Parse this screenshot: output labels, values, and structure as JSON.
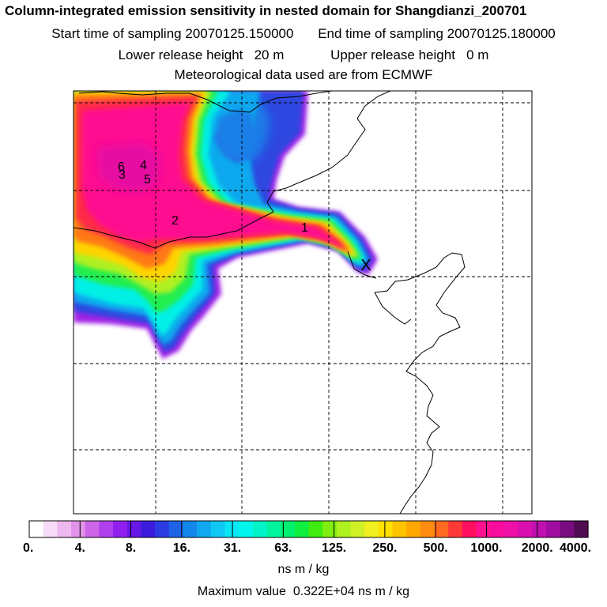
{
  "header": {
    "title": "Column-integrated emission sensitivity in nested domain for Shangdianzi_200701",
    "start_label": "Start time of sampling",
    "start_value": "20070125.150000",
    "end_label": "End time of sampling",
    "end_value": "20070125.180000",
    "lower_label": "Lower release height",
    "lower_value": "20 m",
    "upper_label": "Upper release height",
    "upper_value": "0 m",
    "met_line": "Meteorological data used are from ECMWF"
  },
  "chart_data": {
    "type": "heatmap",
    "title": "Column-integrated emission sensitivity in nested domain for Shangdianzi_200701",
    "colorbar": {
      "tick_labels": [
        "0.",
        "4.",
        "8.",
        "16.",
        "31.",
        "63.",
        "125.",
        "250.",
        "500.",
        "1000.",
        "2000.",
        "4000."
      ],
      "units": "ns m / kg",
      "colors": [
        "#ffffff",
        "#f7dcf7",
        "#eeb8f0",
        "#e292ea",
        "#cc66e6",
        "#b040ee",
        "#9020f0",
        "#6818e6",
        "#3c1cdc",
        "#2c3ce0",
        "#1e62e6",
        "#1488ea",
        "#10a8ee",
        "#10c8f4",
        "#0ae6f4",
        "#00f6ec",
        "#00f4c8",
        "#00f4a0",
        "#00f070",
        "#10ee40",
        "#40ec10",
        "#80ee10",
        "#aef020",
        "#d0f028",
        "#f0f020",
        "#ffe000",
        "#ffc400",
        "#ffa800",
        "#ff8c10",
        "#ff6a20",
        "#ff3838",
        "#ff1060",
        "#ff1090",
        "#f80c9e",
        "#ee10a8",
        "#d810b0",
        "#c010b0",
        "#a00ca0",
        "#780c80",
        "#500c50"
      ]
    },
    "max_label": "Maximum value",
    "max_value": "0.322E+04",
    "max_units": "ns m / kg",
    "release_marker": "X",
    "cluster_labels": [
      "1",
      "2",
      "3",
      "4",
      "5",
      "6"
    ]
  }
}
